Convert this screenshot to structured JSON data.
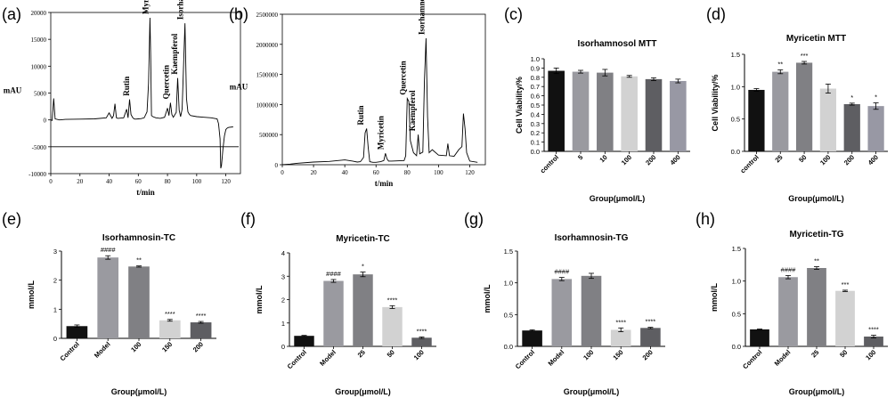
{
  "figure_panels": [
    "(a)",
    "(b)",
    "(c)",
    "(d)",
    "(e)",
    "(f)",
    "(g)",
    "(h)"
  ],
  "colors": {
    "black": "#000000",
    "bar_control": "#111111",
    "bar_shades": [
      "#9a9aa0",
      "#808084",
      "#d2d2d2",
      "#5e5e62",
      "#9898a4"
    ],
    "trace": "#000000"
  },
  "chart_data": [
    {
      "panel": "(a)",
      "type": "line",
      "xlabel": "t/min",
      "ylabel": "mAU",
      "xlim": [
        0,
        130
      ],
      "ylim": [
        -10000,
        20000
      ],
      "xticks": [
        "0",
        "20",
        "40",
        "60",
        "80",
        "100",
        "120"
      ],
      "yticks": [
        "-10000",
        "-5000",
        "0",
        "5000",
        "10000",
        "15000",
        "20000"
      ],
      "baseline_y": -5000,
      "peak_labels": [
        {
          "text": "Rutin",
          "x": 55
        },
        {
          "text": "Myricetin",
          "x": 68
        },
        {
          "text": "Quercetin",
          "x": 82
        },
        {
          "text": "Kaempferol",
          "x": 88
        },
        {
          "text": "Isorhamnetin",
          "x": 92
        }
      ],
      "x": [
        0,
        1,
        2,
        3,
        6,
        10,
        20,
        30,
        38,
        40,
        42,
        43,
        44,
        45,
        46,
        50,
        52,
        53,
        54,
        55,
        56,
        57,
        58,
        60,
        62,
        64,
        66,
        67,
        68,
        68.5,
        69,
        70,
        72,
        75,
        78,
        80,
        81,
        82,
        83,
        84,
        86,
        87,
        88,
        89,
        90,
        91,
        92,
        93,
        94,
        95,
        96,
        100,
        105,
        110,
        112,
        114,
        115,
        116,
        116.5,
        117,
        118,
        119,
        120,
        121,
        122,
        125
      ],
      "values": [
        0,
        -100,
        4000,
        200,
        0,
        100,
        150,
        200,
        400,
        1300,
        300,
        800,
        3000,
        400,
        300,
        400,
        2000,
        400,
        3800,
        1000,
        500,
        200,
        150,
        200,
        250,
        400,
        1500,
        6800,
        19000,
        12000,
        800,
        600,
        400,
        300,
        500,
        2200,
        800,
        3200,
        1000,
        500,
        1400,
        7800,
        1800,
        600,
        2000,
        10000,
        18000,
        4000,
        1500,
        1000,
        800,
        600,
        500,
        400,
        300,
        200,
        -700,
        -3500,
        -9000,
        -8500,
        -5500,
        -3000,
        -1800,
        -1500,
        -1400,
        -1300
      ]
    },
    {
      "panel": "(b)",
      "type": "line",
      "xlabel": "t/min",
      "ylabel": "mAU",
      "xlim": [
        0,
        130
      ],
      "ylim": [
        0,
        2500000
      ],
      "xticks": [
        "0",
        "20",
        "40",
        "60",
        "80",
        "100",
        "120"
      ],
      "yticks": [
        "0",
        "500000",
        "1000000",
        "1500000",
        "2000000",
        "2500000"
      ],
      "peak_labels": [
        {
          "text": "Rutin",
          "x": 53
        },
        {
          "text": "Myricetin",
          "x": 66
        },
        {
          "text": "Quercetin",
          "x": 80
        },
        {
          "text": "Kaempferol",
          "x": 86
        },
        {
          "text": "Isorhamnetin",
          "x": 92
        }
      ],
      "x": [
        0,
        5,
        10,
        20,
        30,
        40,
        45,
        48,
        50,
        52,
        53,
        54,
        55,
        56,
        58,
        60,
        63,
        65,
        66,
        67,
        68,
        70,
        75,
        78,
        79,
        80,
        81,
        82,
        84,
        86,
        87,
        88,
        90,
        91,
        92,
        93,
        94,
        96,
        100,
        105,
        106,
        107,
        110,
        113,
        115,
        116,
        117,
        118,
        120,
        125
      ],
      "values": [
        0,
        10000,
        25000,
        45000,
        55000,
        80000,
        60000,
        45000,
        50000,
        120000,
        530000,
        600000,
        280000,
        50000,
        40000,
        40000,
        50000,
        70000,
        190000,
        100000,
        60000,
        60000,
        65000,
        70000,
        150000,
        1100000,
        1050000,
        400000,
        200000,
        150000,
        500000,
        180000,
        210000,
        1400000,
        2100000,
        800000,
        200000,
        250000,
        160000,
        150000,
        350000,
        150000,
        140000,
        250000,
        300000,
        850000,
        600000,
        200000,
        60000,
        40000
      ]
    },
    {
      "panel": "(c)",
      "type": "bar",
      "title": "Isorhamnosol MTT",
      "xlabel": "Group(μmol/L)",
      "ylabel": "Cell Viability/%",
      "categories": [
        "control",
        "5",
        "10",
        "100",
        "200",
        "400"
      ],
      "values": [
        0.87,
        0.86,
        0.85,
        0.81,
        0.78,
        0.76
      ],
      "errors": [
        0.03,
        0.015,
        0.035,
        0.01,
        0.015,
        0.02
      ],
      "ylim": [
        0,
        1.0
      ],
      "yticks": [
        "0.0",
        "0.1",
        "0.2",
        "0.3",
        "0.4",
        "0.5",
        "0.6",
        "0.7",
        "0.8",
        "0.9",
        "1.0"
      ],
      "annotations": [
        "",
        "",
        "",
        "",
        "",
        ""
      ]
    },
    {
      "panel": "(d)",
      "type": "bar",
      "title": "Myricetin MTT",
      "xlabel": "Group(μmol/L)",
      "ylabel": "Cell Viability/%",
      "categories": [
        "control",
        "25",
        "50",
        "100",
        "200",
        "400"
      ],
      "values": [
        0.95,
        1.23,
        1.37,
        0.97,
        0.73,
        0.7
      ],
      "errors": [
        0.02,
        0.03,
        0.02,
        0.07,
        0.015,
        0.05
      ],
      "ylim": [
        0,
        1.5
      ],
      "yticks": [
        "0.0",
        "0.5",
        "1.0",
        "1.5"
      ],
      "annotations": [
        "",
        "**",
        "***",
        "",
        "*",
        "*"
      ]
    },
    {
      "panel": "(e)",
      "type": "bar",
      "title": "Isorhamnosin-TC",
      "xlabel": "Group(μmol/L)",
      "ylabel": "mmol/L",
      "categories": [
        "Control",
        "Model",
        "100",
        "150",
        "200"
      ],
      "values": [
        0.42,
        2.78,
        2.47,
        0.62,
        0.55
      ],
      "errors": [
        0.04,
        0.06,
        0.02,
        0.03,
        0.03
      ],
      "ylim": [
        0,
        3
      ],
      "yticks": [
        "0",
        "1",
        "2",
        "3"
      ],
      "annotations": [
        "",
        "####",
        "**",
        "****",
        "****"
      ]
    },
    {
      "panel": "(f)",
      "type": "bar",
      "title": "Myricetin-TC",
      "xlabel": "Group(μmol/L)",
      "ylabel": "mmol/L",
      "categories": [
        "Control",
        "Model",
        "25",
        "50",
        "100"
      ],
      "values": [
        0.45,
        2.8,
        3.08,
        1.68,
        0.37
      ],
      "errors": [
        0.02,
        0.06,
        0.1,
        0.06,
        0.03
      ],
      "ylim": [
        0,
        4
      ],
      "yticks": [
        "0",
        "1",
        "2",
        "3",
        "4"
      ],
      "annotations": [
        "",
        "####",
        "*",
        "****",
        "****"
      ]
    },
    {
      "panel": "(g)",
      "type": "bar",
      "title": "Isorhamnosin-TG",
      "xlabel": "Group(μmol/L)",
      "ylabel": "mmol/L",
      "categories": [
        "Control",
        "Model",
        "100",
        "150",
        "200"
      ],
      "values": [
        0.25,
        1.06,
        1.11,
        0.26,
        0.29
      ],
      "errors": [
        0.01,
        0.025,
        0.04,
        0.03,
        0.01
      ],
      "ylim": [
        0,
        1.5
      ],
      "yticks": [
        "0.0",
        "0.5",
        "1.0",
        "1.5"
      ],
      "annotations": [
        "",
        "####",
        "",
        "****",
        "****"
      ]
    },
    {
      "panel": "(h)",
      "type": "bar",
      "title": "Myricetin-TG",
      "xlabel": "Group(μmol/L)",
      "ylabel": "mmol/L",
      "categories": [
        "Control",
        "Model",
        "25",
        "50",
        "100"
      ],
      "values": [
        0.26,
        1.06,
        1.2,
        0.85,
        0.15
      ],
      "errors": [
        0.005,
        0.025,
        0.02,
        0.01,
        0.02
      ],
      "ylim": [
        0,
        1.5
      ],
      "yticks": [
        "0.0",
        "0.5",
        "1.0",
        "1.5"
      ],
      "annotations": [
        "",
        "####",
        "**",
        "***",
        "****"
      ]
    }
  ]
}
